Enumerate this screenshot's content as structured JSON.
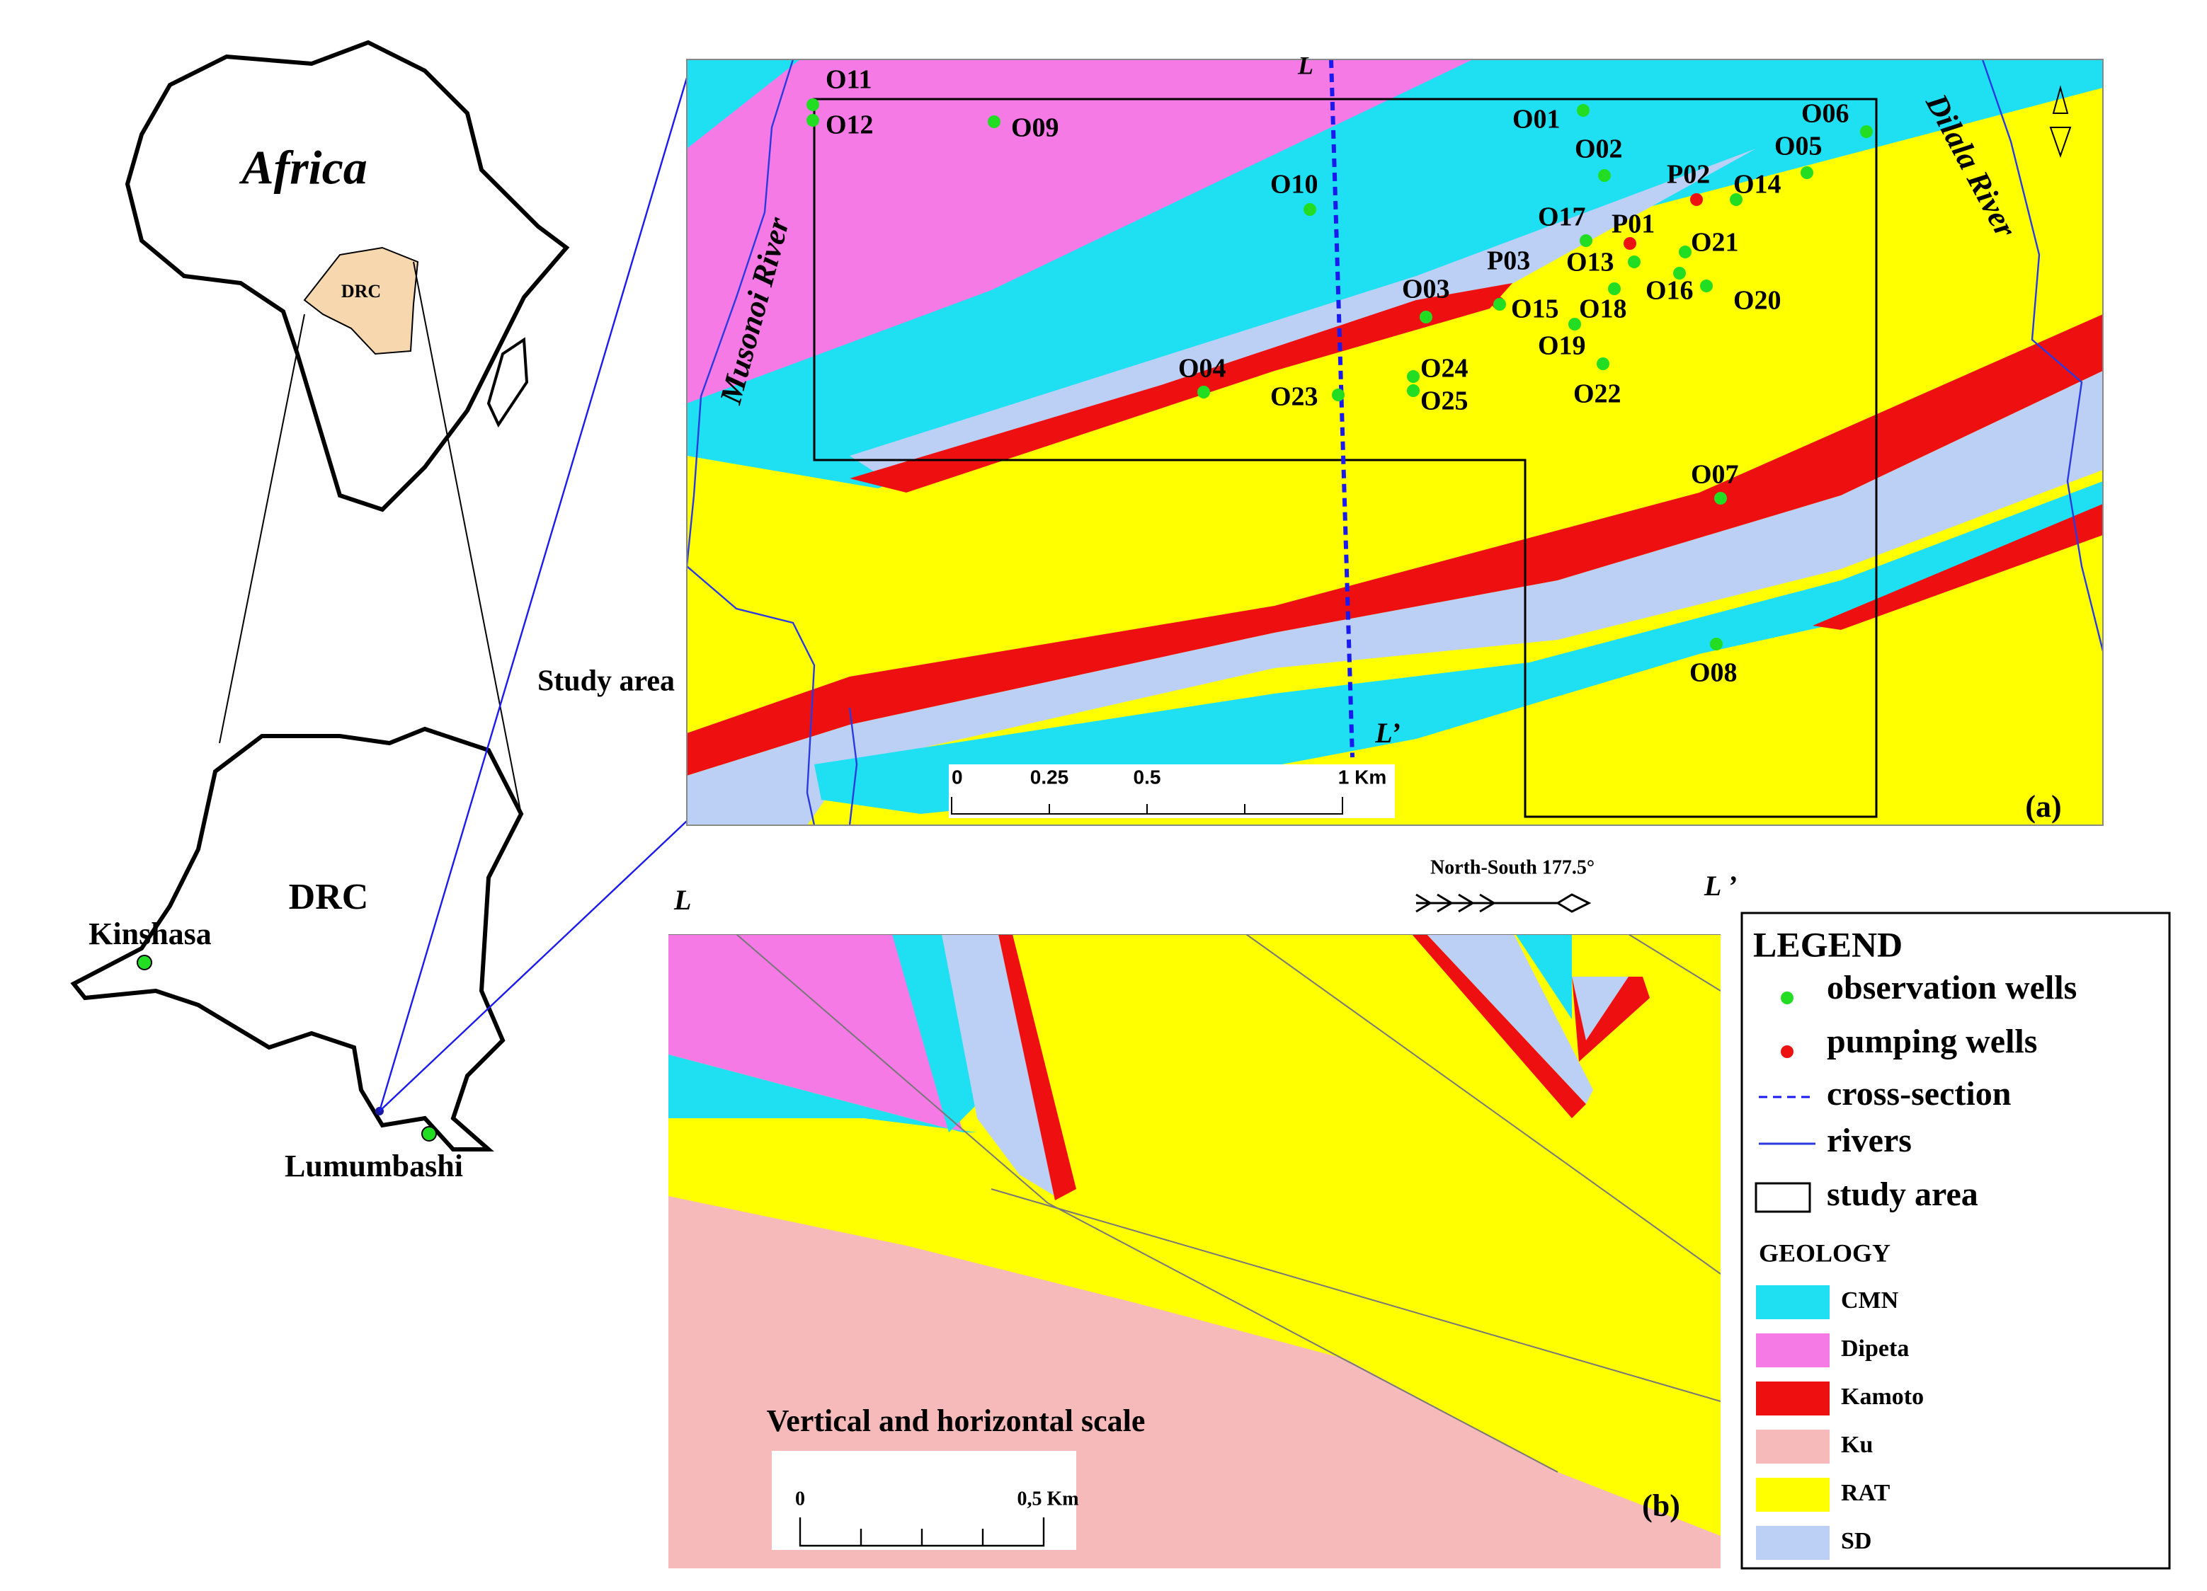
{
  "inset": {
    "continent": "Africa",
    "country_small": "DRC",
    "country": "DRC",
    "cities": [
      "Kinshasa",
      "Lumumbashi"
    ],
    "study_area": "Study area"
  },
  "map_a": {
    "rivers": [
      "Musonoi River",
      "Dilala River"
    ],
    "section_start": "L",
    "section_end": "L’",
    "wells": [
      {
        "label": "O11",
        "kind": "observation"
      },
      {
        "label": "O12",
        "kind": "observation"
      },
      {
        "label": "O09",
        "kind": "observation"
      },
      {
        "label": "O10",
        "kind": "observation"
      },
      {
        "label": "O01",
        "kind": "observation"
      },
      {
        "label": "O02",
        "kind": "observation"
      },
      {
        "label": "O06",
        "kind": "observation"
      },
      {
        "label": "O05",
        "kind": "observation"
      },
      {
        "label": "P02",
        "kind": "pumping"
      },
      {
        "label": "O14",
        "kind": "observation"
      },
      {
        "label": "O17",
        "kind": "observation"
      },
      {
        "label": "P01",
        "kind": "pumping"
      },
      {
        "label": "O13",
        "kind": "observation"
      },
      {
        "label": "O21",
        "kind": "observation"
      },
      {
        "label": "O16",
        "kind": "observation"
      },
      {
        "label": "O20",
        "kind": "observation"
      },
      {
        "label": "P03",
        "kind": "pumping"
      },
      {
        "label": "O15",
        "kind": "observation"
      },
      {
        "label": "O18",
        "kind": "observation"
      },
      {
        "label": "O03",
        "kind": "observation"
      },
      {
        "label": "O19",
        "kind": "observation"
      },
      {
        "label": "O22",
        "kind": "observation"
      },
      {
        "label": "O24",
        "kind": "observation"
      },
      {
        "label": "O25",
        "kind": "observation"
      },
      {
        "label": "O04",
        "kind": "observation"
      },
      {
        "label": "O23",
        "kind": "observation"
      },
      {
        "label": "O07",
        "kind": "observation"
      },
      {
        "label": "O08",
        "kind": "observation"
      }
    ],
    "scale": [
      "0",
      "0.25",
      "0.5",
      "1 Km"
    ],
    "panel": "(a)"
  },
  "section_b": {
    "start": "L",
    "end": "L ’",
    "direction": "North-South 177.5°",
    "scale_title": "Vertical and horizontal scale",
    "scale": [
      "0",
      "0,5 Km"
    ],
    "panel": "(b)"
  },
  "legend": {
    "title": "LEGEND",
    "items": [
      {
        "label": "observation wells",
        "color": "#22dd22"
      },
      {
        "label": "pumping wells",
        "color": "#ee1111"
      },
      {
        "label": "cross-section",
        "color": "#1a1aee"
      },
      {
        "label": "rivers",
        "color": "#2a3ae0"
      },
      {
        "label": "study area",
        "color": "#000000"
      }
    ],
    "geology_title": "GEOLOGY",
    "geology": [
      {
        "name": "CMN",
        "color": "#1ee0f2"
      },
      {
        "name": "Dipeta",
        "color": "#f57ae6"
      },
      {
        "name": "Kamoto",
        "color": "#ee1010"
      },
      {
        "name": "Ku",
        "color": "#f7baba"
      },
      {
        "name": "RAT",
        "color": "#ffff00"
      },
      {
        "name": "SD",
        "color": "#bccff5"
      }
    ]
  }
}
